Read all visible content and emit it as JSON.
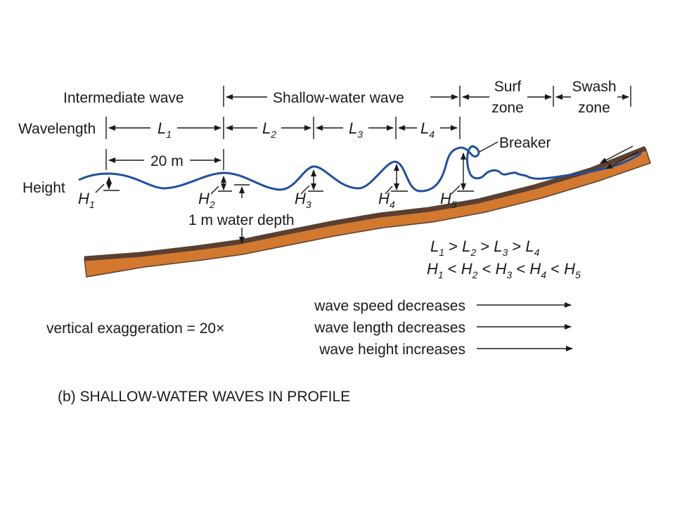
{
  "top_row": {
    "intermediate": "Intermediate wave",
    "shallow": "Shallow-water wave",
    "surf_line1": "Surf",
    "surf_line2": "zone",
    "swash_line1": "Swash",
    "swash_line2": "zone"
  },
  "wavelength_row": {
    "label": "Wavelength",
    "l_letter": "L",
    "l_subs": [
      "1",
      "2",
      "3",
      "4"
    ]
  },
  "distance_label": "20 m",
  "breaker_label": "Breaker",
  "height_label": "Height",
  "h_letter": "H",
  "h_subs": [
    "1",
    "2",
    "3",
    "4",
    "5"
  ],
  "water_depth_label": "1 m water depth",
  "relations": {
    "line1": [
      "L",
      "1",
      " > ",
      "L",
      "2",
      " > ",
      "L",
      "3",
      " > ",
      "L",
      "4"
    ],
    "line2": [
      "H",
      "1",
      " < ",
      "H",
      "2",
      " < ",
      "H",
      "3",
      " < ",
      "H",
      "4",
      " < ",
      "H",
      "5"
    ]
  },
  "trends": [
    "wave speed decreases",
    "wave length decreases",
    "wave height increases"
  ],
  "exaggeration": "vertical exaggeration = 20×",
  "caption": "(b) SHALLOW-WATER WAVES IN PROFILE",
  "colors": {
    "wave": "#1f4fa0",
    "seafloor_fill": "#d2792f",
    "seafloor_edge": "#5a4030"
  }
}
